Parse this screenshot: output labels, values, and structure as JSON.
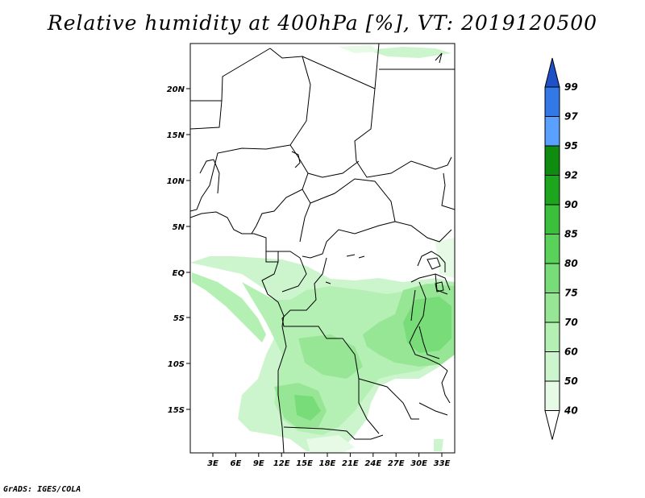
{
  "title": "Relative humidity at 400hPa [%], VT: 2019120500",
  "credit": "GrADS: IGES/COLA",
  "map": {
    "lon_labels": [
      "3E",
      "6E",
      "9E",
      "12E",
      "15E",
      "18E",
      "21E",
      "24E",
      "27E",
      "30E",
      "33E"
    ],
    "lat_labels": [
      "20N",
      "15N",
      "10N",
      "5N",
      "EQ",
      "5S",
      "10S",
      "15S"
    ]
  },
  "colorbar": {
    "levels": [
      "40",
      "50",
      "60",
      "70",
      "75",
      "80",
      "85",
      "90",
      "92",
      "95",
      "97",
      "99"
    ],
    "colors": [
      "#ffffff",
      "#e6fae6",
      "#cdf5cd",
      "#b4f0b4",
      "#96e696",
      "#78dc78",
      "#5ad25a",
      "#3cc03c",
      "#1ea51e",
      "#0f8c0f",
      "#5aa0ff",
      "#3278e6",
      "#1e50c8"
    ]
  }
}
